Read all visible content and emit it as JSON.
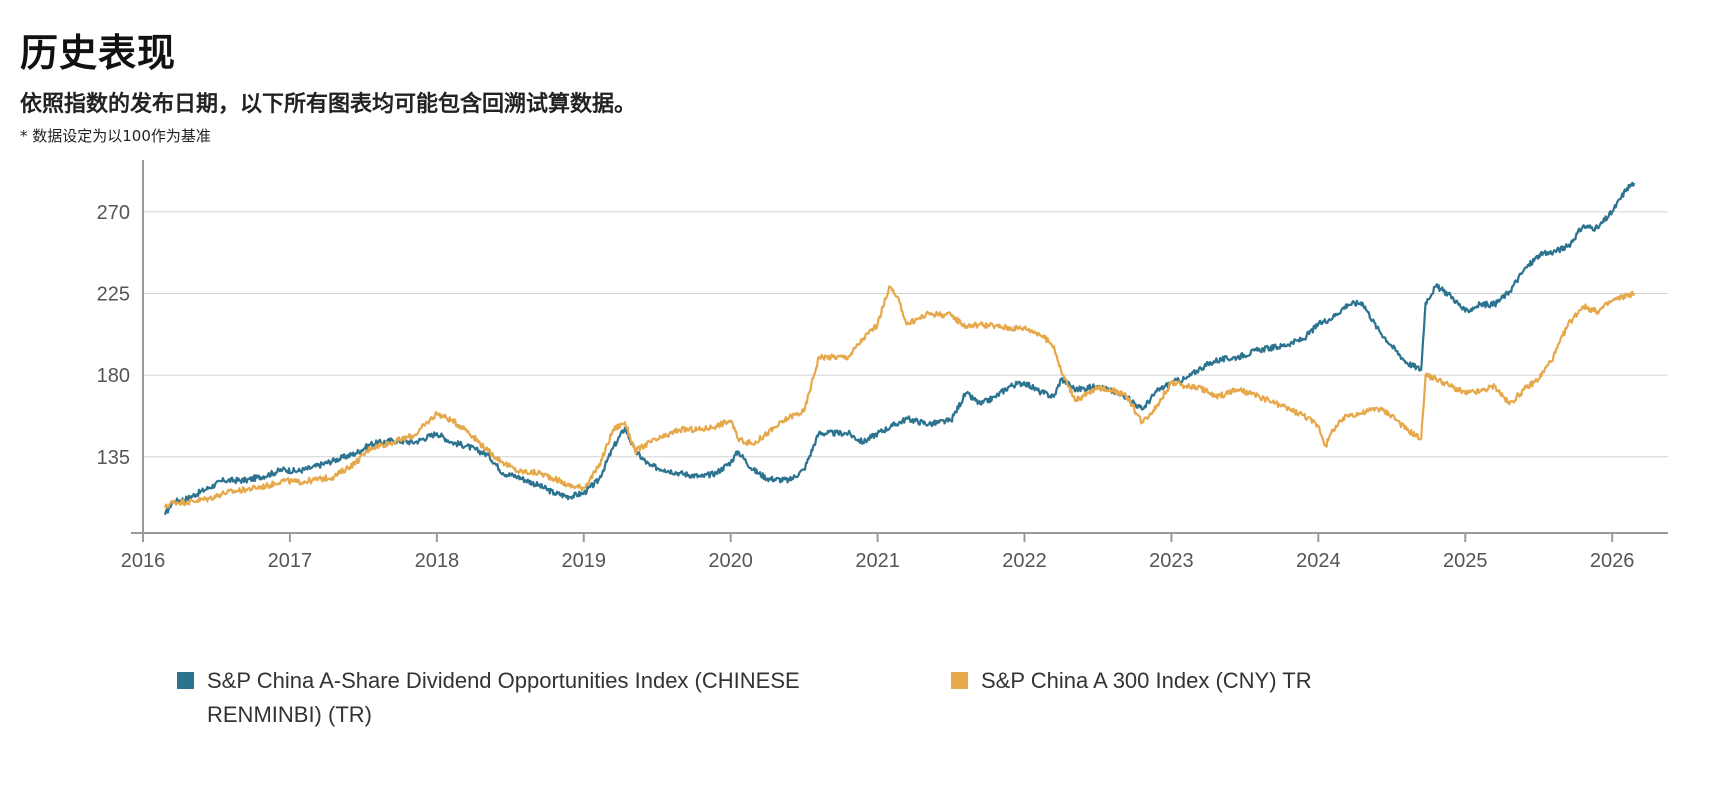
{
  "header": {
    "title": "历史表现",
    "subtitle": "依照指数的发布日期，以下所有图表均可能包含回溯试算数据。",
    "note": "* 数据设定为以100作为基准"
  },
  "colors": {
    "series1": "#2c7390",
    "series2": "#e6a84a",
    "grid": "#d4d4d4",
    "axis": "#999999"
  },
  "legend": {
    "series1_line1": "S&P China A-Share Dividend Opportunities Index (CHINESE",
    "series1_line2": "RENMINBI) (TR)",
    "series2": "S&P China A 300 Index (CNY) TR"
  },
  "chart_data": {
    "type": "line",
    "title": "",
    "xlabel": "",
    "ylabel": "",
    "ylim": [
      93,
      292
    ],
    "xlim": [
      2016.0,
      2026.38
    ],
    "x_ticks": [
      "2016",
      "2017",
      "2018",
      "2019",
      "2020",
      "2021",
      "2022",
      "2023",
      "2024",
      "2025",
      "2026"
    ],
    "y_ticks": [
      135,
      180,
      225,
      270
    ],
    "grid": "horizontal",
    "legend_position": "bottom",
    "series": [
      {
        "name": "S&P China A-Share Dividend Opportunities Index (CHINESE RENMINBI) (TR)",
        "color": "#2c7390",
        "x": [
          2016.15,
          2016.2,
          2016.3,
          2016.45,
          2016.55,
          2016.7,
          2016.85,
          2016.95,
          2017.05,
          2017.15,
          2017.3,
          2017.45,
          2017.55,
          2017.7,
          2017.85,
          2018.0,
          2018.1,
          2018.2,
          2018.35,
          2018.45,
          2018.55,
          2018.7,
          2018.8,
          2018.9,
          2019.0,
          2019.1,
          2019.2,
          2019.28,
          2019.35,
          2019.45,
          2019.55,
          2019.65,
          2019.8,
          2019.9,
          2020.0,
          2020.05,
          2020.15,
          2020.25,
          2020.4,
          2020.5,
          2020.6,
          2020.8,
          2020.9,
          2021.0,
          2021.1,
          2021.2,
          2021.35,
          2021.5,
          2021.6,
          2021.7,
          2021.8,
          2021.9,
          2022.0,
          2022.1,
          2022.2,
          2022.25,
          2022.35,
          2022.5,
          2022.6,
          2022.7,
          2022.8,
          2022.9,
          2023.0,
          2023.1,
          2023.2,
          2023.3,
          2023.45,
          2023.6,
          2023.75,
          2023.9,
          2024.0,
          2024.1,
          2024.2,
          2024.3,
          2024.4,
          2024.5,
          2024.6,
          2024.7,
          2024.73,
          2024.8,
          2024.9,
          2025.0,
          2025.1,
          2025.2,
          2025.3,
          2025.4,
          2025.5,
          2025.6,
          2025.7,
          2025.8,
          2025.9,
          2026.0,
          2026.1,
          2026.15
        ],
        "values": [
          103,
          110,
          112,
          118,
          122,
          122,
          125,
          128,
          127,
          129,
          133,
          137,
          142,
          144,
          143,
          148,
          143,
          141,
          136,
          126,
          124,
          119,
          115,
          113,
          115,
          122,
          140,
          151,
          138,
          130,
          128,
          126,
          124,
          126,
          132,
          138,
          128,
          123,
          122,
          128,
          148,
          148,
          143,
          148,
          152,
          156,
          153,
          155,
          170,
          164,
          168,
          174,
          176,
          171,
          168,
          178,
          172,
          174,
          171,
          168,
          161,
          171,
          176,
          178,
          184,
          188,
          190,
          194,
          196,
          200,
          208,
          212,
          219,
          220,
          206,
          196,
          187,
          183,
          220,
          229,
          224,
          215,
          219,
          219,
          226,
          238,
          246,
          248,
          251,
          262,
          261,
          270,
          283,
          286
        ]
      },
      {
        "name": "S&P China A 300 Index (CNY) TR",
        "color": "#e6a84a",
        "x": [
          2016.15,
          2016.2,
          2016.3,
          2016.45,
          2016.55,
          2016.7,
          2016.85,
          2016.95,
          2017.05,
          2017.15,
          2017.3,
          2017.45,
          2017.55,
          2017.7,
          2017.85,
          2018.0,
          2018.1,
          2018.2,
          2018.35,
          2018.45,
          2018.55,
          2018.7,
          2018.8,
          2018.9,
          2019.0,
          2019.1,
          2019.2,
          2019.28,
          2019.35,
          2019.45,
          2019.55,
          2019.65,
          2019.8,
          2019.9,
          2020.0,
          2020.05,
          2020.15,
          2020.25,
          2020.4,
          2020.5,
          2020.6,
          2020.8,
          2020.9,
          2021.0,
          2021.08,
          2021.15,
          2021.2,
          2021.35,
          2021.5,
          2021.6,
          2021.7,
          2021.8,
          2021.9,
          2022.0,
          2022.1,
          2022.2,
          2022.25,
          2022.35,
          2022.5,
          2022.6,
          2022.7,
          2022.8,
          2022.9,
          2023.0,
          2023.1,
          2023.2,
          2023.3,
          2023.45,
          2023.6,
          2023.75,
          2023.9,
          2024.0,
          2024.05,
          2024.1,
          2024.2,
          2024.3,
          2024.4,
          2024.5,
          2024.6,
          2024.7,
          2024.73,
          2024.8,
          2024.9,
          2025.0,
          2025.1,
          2025.2,
          2025.3,
          2025.4,
          2025.5,
          2025.6,
          2025.7,
          2025.8,
          2025.9,
          2026.0,
          2026.1,
          2026.15
        ],
        "values": [
          107,
          110,
          110,
          112,
          115,
          117,
          119,
          122,
          121,
          122,
          124,
          132,
          140,
          143,
          147,
          159,
          155,
          150,
          138,
          132,
          127,
          126,
          123,
          119,
          118,
          129,
          150,
          154,
          138,
          143,
          146,
          150,
          150,
          152,
          155,
          145,
          142,
          148,
          157,
          160,
          190,
          190,
          200,
          208,
          229,
          220,
          208,
          214,
          213,
          207,
          208,
          207,
          206,
          206,
          203,
          196,
          182,
          166,
          173,
          172,
          168,
          154,
          163,
          176,
          174,
          173,
          168,
          172,
          168,
          163,
          158,
          152,
          141,
          150,
          158,
          159,
          162,
          158,
          150,
          145,
          180,
          178,
          174,
          170,
          171,
          174,
          164,
          172,
          178,
          190,
          208,
          218,
          215,
          221,
          224,
          225
        ]
      }
    ]
  }
}
